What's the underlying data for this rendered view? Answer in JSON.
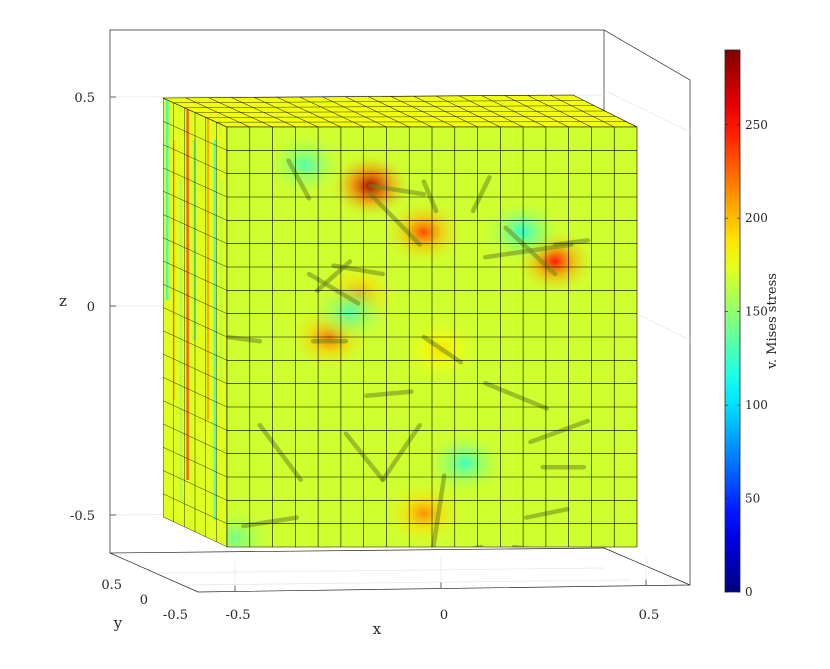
{
  "chart_data": {
    "type": "surface3d",
    "title": "",
    "axes": {
      "x": {
        "label": "x",
        "range": [
          -0.6,
          0.6
        ],
        "ticks": [
          -0.5,
          0,
          0.5
        ],
        "tick_labels": [
          "-0.5",
          "0",
          "0.5"
        ]
      },
      "y": {
        "label": "y",
        "range": [
          -0.6,
          0.6
        ],
        "ticks": [
          -0.5,
          0,
          0.5
        ],
        "tick_labels": [
          "-0.5",
          "0",
          "0.5"
        ]
      },
      "z": {
        "label": "z",
        "range": [
          -0.6,
          0.6
        ],
        "ticks": [
          -0.5,
          0,
          0.5
        ],
        "tick_labels": [
          "-0.5",
          "0",
          "0.5"
        ]
      }
    },
    "grid": true,
    "mesh": {
      "divisions_x": 18,
      "divisions_y": 18,
      "divisions_z": 18,
      "edge_color": "#000000"
    },
    "colorbar": {
      "label": "v. Mises stress",
      "colormap": "jet",
      "range": [
        0,
        290
      ],
      "ticks": [
        0,
        50,
        100,
        150,
        200,
        250
      ],
      "tick_labels": [
        "0",
        "50",
        "100",
        "150",
        "200",
        "250"
      ],
      "location": "right"
    },
    "base_stress": 168,
    "stress_spots": [
      {
        "x": -0.15,
        "z": 0.36,
        "value": 280
      },
      {
        "x": -0.02,
        "z": 0.25,
        "value": 235
      },
      {
        "x": 0.3,
        "z": 0.18,
        "value": 250
      },
      {
        "x": -0.18,
        "z": 0.1,
        "value": 215
      },
      {
        "x": -0.25,
        "z": 0.0,
        "value": 225
      },
      {
        "x": -0.2,
        "z": 0.06,
        "value": 130
      },
      {
        "x": 0.22,
        "z": 0.25,
        "value": 120
      },
      {
        "x": -0.31,
        "z": 0.41,
        "value": 130
      },
      {
        "x": 0.08,
        "z": -0.3,
        "value": 125
      },
      {
        "x": -0.02,
        "z": -0.42,
        "value": 215
      },
      {
        "x": 0.02,
        "z": -0.03,
        "value": 190
      },
      {
        "x": -0.48,
        "z": -0.48,
        "value": 140
      }
    ],
    "fibers": [
      [
        -0.35,
        0.42,
        -0.3,
        0.33
      ],
      [
        -0.3,
        0.15,
        -0.18,
        0.08
      ],
      [
        -0.24,
        0.17,
        -0.12,
        0.15
      ],
      [
        -0.28,
        0.11,
        -0.2,
        0.18
      ],
      [
        -0.15,
        0.36,
        -0.02,
        0.34
      ],
      [
        -0.15,
        0.34,
        -0.03,
        0.22
      ],
      [
        -0.02,
        0.37,
        0.01,
        0.3
      ],
      [
        0.14,
        0.38,
        0.1,
        0.3
      ],
      [
        0.18,
        0.26,
        0.3,
        0.15
      ],
      [
        0.13,
        0.19,
        0.34,
        0.22
      ],
      [
        0.3,
        0.22,
        0.38,
        0.23
      ],
      [
        -0.29,
        -0.01,
        -0.21,
        -0.01
      ],
      [
        -0.5,
        0.0,
        -0.42,
        -0.01
      ],
      [
        -0.02,
        0.0,
        0.07,
        -0.06
      ],
      [
        0.13,
        -0.11,
        0.28,
        -0.17
      ],
      [
        -0.42,
        -0.21,
        -0.32,
        -0.34
      ],
      [
        -0.21,
        -0.23,
        -0.12,
        -0.34
      ],
      [
        -0.12,
        -0.34,
        -0.03,
        -0.21
      ],
      [
        -0.46,
        -0.45,
        -0.33,
        -0.43
      ],
      [
        0.03,
        -0.33,
        0.0,
        -0.52
      ],
      [
        0.24,
        -0.25,
        0.38,
        -0.2
      ],
      [
        0.27,
        -0.31,
        0.37,
        -0.31
      ],
      [
        0.23,
        -0.43,
        0.33,
        -0.41
      ],
      [
        0.2,
        -0.5,
        0.27,
        -0.51
      ],
      [
        -0.48,
        -0.51,
        -0.4,
        -0.52
      ],
      [
        -0.16,
        -0.14,
        -0.05,
        -0.13
      ],
      [
        0.02,
        -0.52,
        0.12,
        -0.5
      ]
    ]
  }
}
